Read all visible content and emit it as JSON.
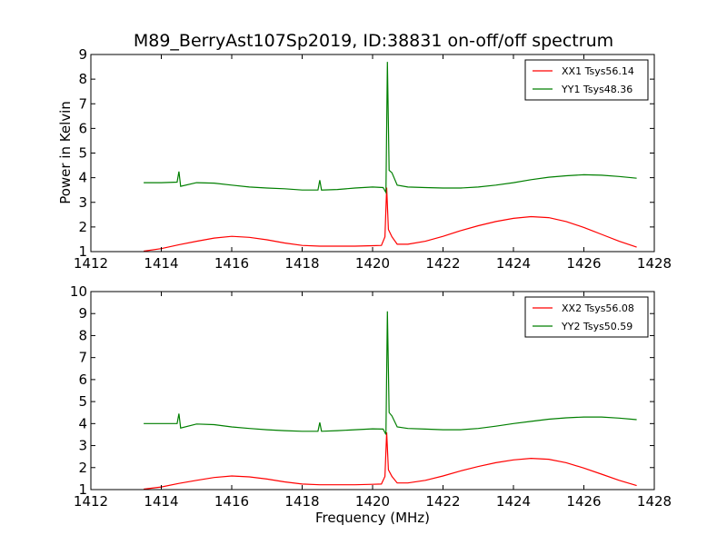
{
  "figure": {
    "title": "M89_BerryAst107Sp2019, ID:38831 on-off/off spectrum"
  },
  "colors": {
    "red": "#ff0000",
    "green": "#007f00",
    "axis": "#000000"
  },
  "chart_data": [
    {
      "type": "line",
      "title": "",
      "xlabel": "",
      "ylabel": "Power in Kelvin",
      "xlim": [
        1412,
        1428
      ],
      "ylim": [
        1,
        9
      ],
      "xticks": [
        1412,
        1414,
        1416,
        1418,
        1420,
        1422,
        1424,
        1426,
        1428
      ],
      "yticks": [
        1,
        2,
        3,
        4,
        5,
        6,
        7,
        8,
        9
      ],
      "legend_position": "top-right",
      "series": [
        {
          "name": "XX1 Tsys56.14",
          "color": "#ff0000",
          "x": [
            1413.5,
            1414.0,
            1414.5,
            1415.0,
            1415.5,
            1416.0,
            1416.5,
            1417.0,
            1417.5,
            1418.0,
            1418.5,
            1419.0,
            1419.5,
            1420.0,
            1420.25,
            1420.35,
            1420.4,
            1420.45,
            1420.55,
            1420.7,
            1421.0,
            1421.5,
            1422.0,
            1422.5,
            1423.0,
            1423.5,
            1424.0,
            1424.5,
            1425.0,
            1425.5,
            1426.0,
            1426.5,
            1427.0,
            1427.5
          ],
          "y": [
            1.02,
            1.12,
            1.28,
            1.42,
            1.55,
            1.62,
            1.58,
            1.48,
            1.35,
            1.25,
            1.22,
            1.22,
            1.22,
            1.24,
            1.25,
            1.6,
            3.6,
            1.9,
            1.6,
            1.3,
            1.3,
            1.42,
            1.62,
            1.85,
            2.05,
            2.22,
            2.35,
            2.42,
            2.38,
            2.22,
            1.98,
            1.7,
            1.42,
            1.18
          ]
        },
        {
          "name": "YY1 Tsys48.36",
          "color": "#007f00",
          "x": [
            1413.5,
            1414.0,
            1414.45,
            1414.5,
            1414.55,
            1415.0,
            1415.5,
            1416.0,
            1416.5,
            1417.0,
            1417.5,
            1418.0,
            1418.45,
            1418.5,
            1418.55,
            1419.0,
            1419.5,
            1420.0,
            1420.3,
            1420.38,
            1420.42,
            1420.47,
            1420.55,
            1420.7,
            1421.0,
            1421.5,
            1422.0,
            1422.5,
            1423.0,
            1423.5,
            1424.0,
            1424.5,
            1425.0,
            1425.5,
            1426.0,
            1426.5,
            1427.0,
            1427.5
          ],
          "y": [
            3.8,
            3.8,
            3.82,
            4.25,
            3.65,
            3.8,
            3.78,
            3.7,
            3.62,
            3.58,
            3.55,
            3.5,
            3.5,
            3.9,
            3.5,
            3.52,
            3.58,
            3.62,
            3.6,
            3.4,
            8.7,
            4.3,
            4.2,
            3.7,
            3.62,
            3.6,
            3.58,
            3.58,
            3.62,
            3.7,
            3.8,
            3.92,
            4.02,
            4.08,
            4.12,
            4.1,
            4.05,
            3.98
          ]
        }
      ]
    },
    {
      "type": "line",
      "title": "",
      "xlabel": "Frequency (MHz)",
      "ylabel": "",
      "xlim": [
        1412,
        1428
      ],
      "ylim": [
        1,
        10
      ],
      "xticks": [
        1412,
        1414,
        1416,
        1418,
        1420,
        1422,
        1424,
        1426,
        1428
      ],
      "yticks": [
        1,
        2,
        3,
        4,
        5,
        6,
        7,
        8,
        9,
        10
      ],
      "legend_position": "top-right",
      "series": [
        {
          "name": "XX2 Tsys56.08",
          "color": "#ff0000",
          "x": [
            1413.5,
            1414.0,
            1414.5,
            1415.0,
            1415.5,
            1416.0,
            1416.5,
            1417.0,
            1417.5,
            1418.0,
            1418.5,
            1419.0,
            1419.5,
            1420.0,
            1420.25,
            1420.35,
            1420.4,
            1420.45,
            1420.55,
            1420.7,
            1421.0,
            1421.5,
            1422.0,
            1422.5,
            1423.0,
            1423.5,
            1424.0,
            1424.5,
            1425.0,
            1425.5,
            1426.0,
            1426.5,
            1427.0,
            1427.5
          ],
          "y": [
            1.02,
            1.12,
            1.28,
            1.42,
            1.55,
            1.62,
            1.58,
            1.48,
            1.35,
            1.25,
            1.22,
            1.22,
            1.22,
            1.24,
            1.25,
            1.6,
            3.6,
            1.9,
            1.6,
            1.3,
            1.3,
            1.42,
            1.62,
            1.85,
            2.05,
            2.22,
            2.35,
            2.42,
            2.38,
            2.22,
            1.98,
            1.7,
            1.42,
            1.18
          ]
        },
        {
          "name": "YY2 Tsys50.59",
          "color": "#007f00",
          "x": [
            1413.5,
            1414.0,
            1414.45,
            1414.5,
            1414.55,
            1415.0,
            1415.5,
            1416.0,
            1416.5,
            1417.0,
            1417.5,
            1418.0,
            1418.45,
            1418.5,
            1418.55,
            1419.0,
            1419.5,
            1420.0,
            1420.3,
            1420.38,
            1420.42,
            1420.47,
            1420.55,
            1420.7,
            1421.0,
            1421.5,
            1422.0,
            1422.5,
            1423.0,
            1423.5,
            1424.0,
            1424.5,
            1425.0,
            1425.5,
            1426.0,
            1426.5,
            1427.0,
            1427.5
          ],
          "y": [
            4.0,
            4.0,
            4.0,
            4.45,
            3.8,
            3.98,
            3.95,
            3.85,
            3.78,
            3.72,
            3.68,
            3.65,
            3.65,
            4.05,
            3.65,
            3.68,
            3.72,
            3.76,
            3.75,
            3.5,
            9.1,
            4.5,
            4.35,
            3.85,
            3.78,
            3.75,
            3.72,
            3.72,
            3.78,
            3.88,
            4.0,
            4.1,
            4.2,
            4.26,
            4.3,
            4.3,
            4.25,
            4.18
          ]
        }
      ]
    }
  ]
}
